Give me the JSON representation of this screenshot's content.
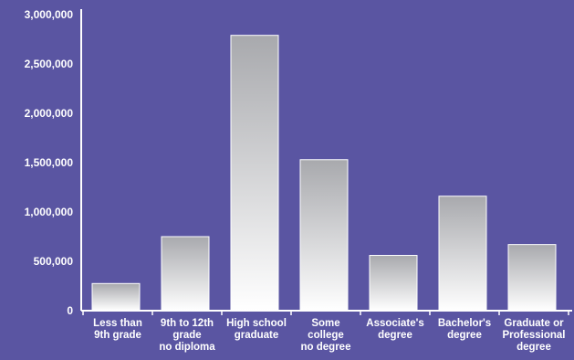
{
  "chart_data": {
    "type": "bar",
    "title": "",
    "xlabel": "",
    "ylabel": "",
    "ylim": [
      0,
      3000000
    ],
    "yticks": [
      0,
      500000,
      1000000,
      1500000,
      2000000,
      2500000,
      3000000
    ],
    "ytick_labels": [
      "0",
      "500,000",
      "1,000,000",
      "1,500,000",
      "2,000,000",
      "2,500,000",
      "3,000,000"
    ],
    "grid": false,
    "categories": [
      [
        "Less than",
        "9th grade"
      ],
      [
        "9th to 12th",
        "grade",
        "no diploma"
      ],
      [
        "High school",
        "graduate"
      ],
      [
        "Some",
        "college",
        "no degree"
      ],
      [
        "Associate's",
        "degree"
      ],
      [
        "Bachelor's",
        "degree"
      ],
      [
        "Graduate or",
        "Professional",
        "degree"
      ]
    ],
    "values": [
      275000,
      750000,
      2790000,
      1530000,
      560000,
      1160000,
      670000
    ],
    "colors": {
      "background": "#5a55a2",
      "axis": "#ffffff",
      "bar_top": "#a8a9ad",
      "bar_bottom": "#ffffff"
    }
  }
}
